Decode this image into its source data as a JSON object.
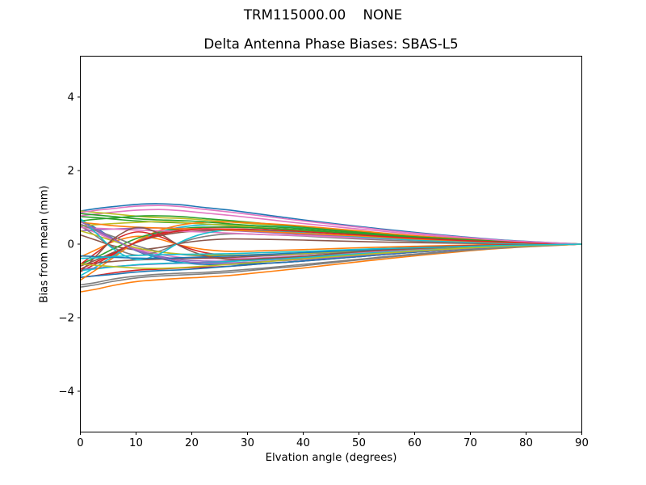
{
  "chart_data": {
    "type": "line",
    "suptitle": "TRM115000.00    NONE",
    "title": "Delta Antenna Phase Biases: SBAS-L5",
    "xlabel": "Elvation angle (degrees)",
    "ylabel": "Bias from mean (mm)",
    "xlim": [
      0,
      90
    ],
    "ylim": [
      -5.11,
      5.11
    ],
    "xticks": [
      0,
      10,
      20,
      30,
      40,
      50,
      60,
      70,
      80,
      90
    ],
    "xtick_labels": [
      "0",
      "10",
      "20",
      "30",
      "40",
      "50",
      "60",
      "70",
      "80",
      "90"
    ],
    "yticks": [
      -4,
      -2,
      0,
      2,
      4
    ],
    "ytick_labels": [
      "−4",
      "−2",
      "0",
      "2",
      "4"
    ],
    "grid": false,
    "legend": null,
    "line_width": 1.6,
    "axis_color": "#000000",
    "background": "#ffffff",
    "color_cycle": [
      "#1f77b4",
      "#ff7f0e",
      "#2ca02c",
      "#d62728",
      "#9467bd",
      "#8c564b",
      "#e377c2",
      "#7f7f7f",
      "#bcbd22",
      "#17becf"
    ],
    "x": [
      0,
      3,
      6,
      10,
      14,
      18,
      22,
      27,
      33,
      40,
      50,
      60,
      75,
      90
    ],
    "series": [
      [
        0.9,
        0.97,
        1.02,
        1.08,
        1.1,
        1.07,
        1.0,
        0.92,
        0.8,
        0.66,
        0.48,
        0.32,
        0.12,
        0.0
      ],
      [
        -1.3,
        -1.22,
        -1.12,
        -1.02,
        -0.97,
        -0.93,
        -0.9,
        -0.85,
        -0.76,
        -0.65,
        -0.48,
        -0.32,
        -0.12,
        0.0
      ],
      [
        0.75,
        0.72,
        0.68,
        0.63,
        0.6,
        0.58,
        0.55,
        0.5,
        0.44,
        0.38,
        0.28,
        0.18,
        0.07,
        0.0
      ],
      [
        -0.75,
        -0.52,
        -0.28,
        0.05,
        0.28,
        0.4,
        0.45,
        0.46,
        0.43,
        0.38,
        0.28,
        0.18,
        0.07,
        0.0
      ],
      [
        0.55,
        0.35,
        0.12,
        -0.15,
        -0.32,
        -0.42,
        -0.46,
        -0.46,
        -0.43,
        -0.38,
        -0.28,
        -0.18,
        -0.07,
        0.0
      ],
      [
        0.25,
        0.1,
        -0.05,
        -0.15,
        -0.1,
        0.02,
        0.1,
        0.14,
        0.13,
        0.11,
        0.07,
        0.04,
        0.01,
        0.0
      ],
      [
        0.77,
        0.82,
        0.87,
        0.92,
        0.94,
        0.91,
        0.85,
        0.78,
        0.68,
        0.56,
        0.41,
        0.27,
        0.1,
        0.0
      ],
      [
        -1.11,
        -1.04,
        -0.95,
        -0.87,
        -0.82,
        -0.79,
        -0.77,
        -0.72,
        -0.65,
        -0.55,
        -0.41,
        -0.27,
        -0.1,
        0.0
      ],
      [
        0.9,
        0.86,
        0.82,
        0.76,
        0.72,
        0.7,
        0.66,
        0.6,
        0.53,
        0.46,
        0.34,
        0.22,
        0.08,
        0.0
      ],
      [
        -0.86,
        -0.6,
        -0.32,
        0.06,
        0.32,
        0.46,
        0.52,
        0.53,
        0.49,
        0.44,
        0.32,
        0.21,
        0.08,
        0.0
      ],
      [
        0.66,
        0.42,
        0.14,
        -0.18,
        -0.38,
        -0.5,
        -0.55,
        -0.55,
        -0.52,
        -0.46,
        -0.34,
        -0.22,
        -0.08,
        0.0
      ],
      [
        -0.35,
        -0.14,
        0.07,
        0.21,
        0.14,
        -0.03,
        -0.14,
        -0.2,
        -0.18,
        -0.15,
        -0.1,
        -0.06,
        -0.01,
        0.0
      ],
      [
        0.63,
        0.68,
        0.71,
        0.76,
        0.77,
        0.75,
        0.7,
        0.64,
        0.56,
        0.46,
        0.34,
        0.22,
        0.08,
        0.0
      ],
      [
        -0.91,
        -0.85,
        -0.78,
        -0.71,
        -0.68,
        -0.65,
        -0.63,
        -0.6,
        -0.53,
        -0.46,
        -0.34,
        -0.22,
        -0.08,
        0.0
      ],
      [
        -0.68,
        -0.65,
        -0.61,
        -0.57,
        -0.54,
        -0.52,
        -0.5,
        -0.45,
        -0.4,
        -0.34,
        -0.25,
        -0.16,
        -0.06,
        0.0
      ],
      [
        -0.6,
        -0.42,
        -0.22,
        0.04,
        0.22,
        0.32,
        0.36,
        0.37,
        0.34,
        0.3,
        0.22,
        0.14,
        0.06,
        0.0
      ],
      [
        0.47,
        0.3,
        0.1,
        -0.13,
        -0.27,
        -0.36,
        -0.39,
        -0.39,
        -0.37,
        -0.32,
        -0.24,
        -0.15,
        -0.06,
        0.0
      ],
      [
        0.5,
        0.2,
        -0.1,
        -0.3,
        -0.2,
        0.04,
        0.2,
        0.28,
        0.26,
        0.22,
        0.14,
        0.08,
        0.02,
        0.0
      ],
      [
        0.5,
        0.53,
        0.56,
        0.59,
        0.61,
        0.59,
        0.55,
        0.51,
        0.44,
        0.36,
        0.26,
        0.18,
        0.07,
        0.0
      ],
      [
        -0.72,
        -0.67,
        -0.62,
        -0.56,
        -0.53,
        -0.51,
        -0.5,
        -0.47,
        -0.42,
        -0.36,
        -0.26,
        -0.18,
        -0.07,
        0.0
      ],
      [
        -0.9,
        -0.86,
        -0.82,
        -0.76,
        -0.72,
        -0.7,
        -0.66,
        -0.6,
        -0.53,
        -0.46,
        -0.34,
        -0.22,
        -0.08,
        0.0
      ],
      [
        -0.98,
        -0.68,
        -0.36,
        0.07,
        0.36,
        0.52,
        0.59,
        0.6,
        0.56,
        0.49,
        0.36,
        0.23,
        0.09,
        0.0
      ],
      [
        -0.55,
        -0.35,
        -0.12,
        0.15,
        0.32,
        0.42,
        0.46,
        0.46,
        0.43,
        0.38,
        0.28,
        0.18,
        0.07,
        0.0
      ],
      [
        -0.55,
        -0.22,
        0.11,
        0.33,
        0.22,
        -0.04,
        -0.22,
        -0.31,
        -0.29,
        -0.24,
        -0.15,
        -0.09,
        -0.02,
        0.0
      ],
      [
        0.36,
        0.39,
        0.41,
        0.43,
        0.44,
        0.43,
        0.4,
        0.37,
        0.32,
        0.26,
        0.19,
        0.13,
        0.05,
        0.0
      ],
      [
        -0.55,
        -0.51,
        -0.47,
        -0.43,
        -0.41,
        -0.39,
        -0.38,
        -0.36,
        -0.32,
        -0.27,
        -0.2,
        -0.13,
        -0.05,
        0.0
      ],
      [
        0.45,
        0.43,
        0.41,
        0.38,
        0.36,
        0.35,
        0.33,
        0.3,
        0.26,
        0.23,
        0.17,
        0.11,
        0.04,
        0.0
      ],
      [
        0.53,
        0.36,
        0.2,
        -0.04,
        -0.2,
        -0.28,
        -0.32,
        -0.32,
        -0.3,
        -0.27,
        -0.2,
        -0.13,
        -0.05,
        0.0
      ],
      [
        0.36,
        0.23,
        0.08,
        -0.1,
        -0.21,
        -0.27,
        -0.3,
        -0.3,
        -0.28,
        -0.25,
        -0.18,
        -0.12,
        -0.05,
        0.0
      ],
      [
        0.7,
        0.28,
        -0.14,
        -0.42,
        -0.28,
        0.06,
        0.28,
        0.39,
        0.36,
        0.31,
        0.2,
        0.11,
        0.03,
        0.0
      ],
      [
        -0.32,
        -0.34,
        -0.36,
        -0.38,
        -0.39,
        -0.37,
        -0.35,
        -0.32,
        -0.28,
        -0.23,
        -0.17,
        -0.11,
        -0.04,
        0.0
      ],
      [
        0.59,
        0.55,
        0.5,
        0.46,
        0.44,
        0.42,
        0.41,
        0.38,
        0.34,
        0.29,
        0.22,
        0.14,
        0.05,
        0.0
      ],
      [
        0.83,
        0.79,
        0.75,
        0.69,
        0.66,
        0.64,
        0.61,
        0.55,
        0.48,
        0.42,
        0.31,
        0.2,
        0.08,
        0.0
      ],
      [
        -0.68,
        -0.47,
        -0.25,
        0.05,
        0.25,
        0.36,
        0.41,
        0.41,
        0.39,
        0.34,
        0.25,
        0.16,
        0.06,
        0.0
      ],
      [
        0.61,
        0.39,
        0.13,
        -0.17,
        -0.35,
        -0.46,
        -0.51,
        -0.51,
        -0.47,
        -0.42,
        -0.31,
        -0.2,
        -0.08,
        0.0
      ],
      [
        -0.75,
        -0.3,
        0.15,
        0.45,
        0.3,
        -0.06,
        -0.3,
        -0.42,
        -0.39,
        -0.33,
        -0.21,
        -0.12,
        -0.03,
        0.0
      ],
      [
        0.86,
        0.92,
        0.97,
        1.03,
        1.05,
        1.02,
        0.95,
        0.87,
        0.76,
        0.63,
        0.46,
        0.3,
        0.11,
        0.0
      ],
      [
        -1.17,
        -1.1,
        -1.01,
        -0.92,
        -0.87,
        -0.84,
        -0.81,
        -0.77,
        -0.68,
        -0.59,
        -0.43,
        -0.29,
        -0.11,
        0.0
      ],
      [
        -0.54,
        -0.58,
        -0.61,
        -0.65,
        -0.66,
        -0.64,
        -0.6,
        -0.55,
        -0.48,
        -0.4,
        -0.29,
        -0.19,
        -0.07,
        0.0
      ],
      [
        -0.39,
        -0.37,
        -0.34,
        -0.31,
        -0.29,
        -0.28,
        -0.27,
        -0.26,
        -0.23,
        -0.2,
        -0.14,
        -0.1,
        -0.04,
        0.0
      ]
    ]
  }
}
